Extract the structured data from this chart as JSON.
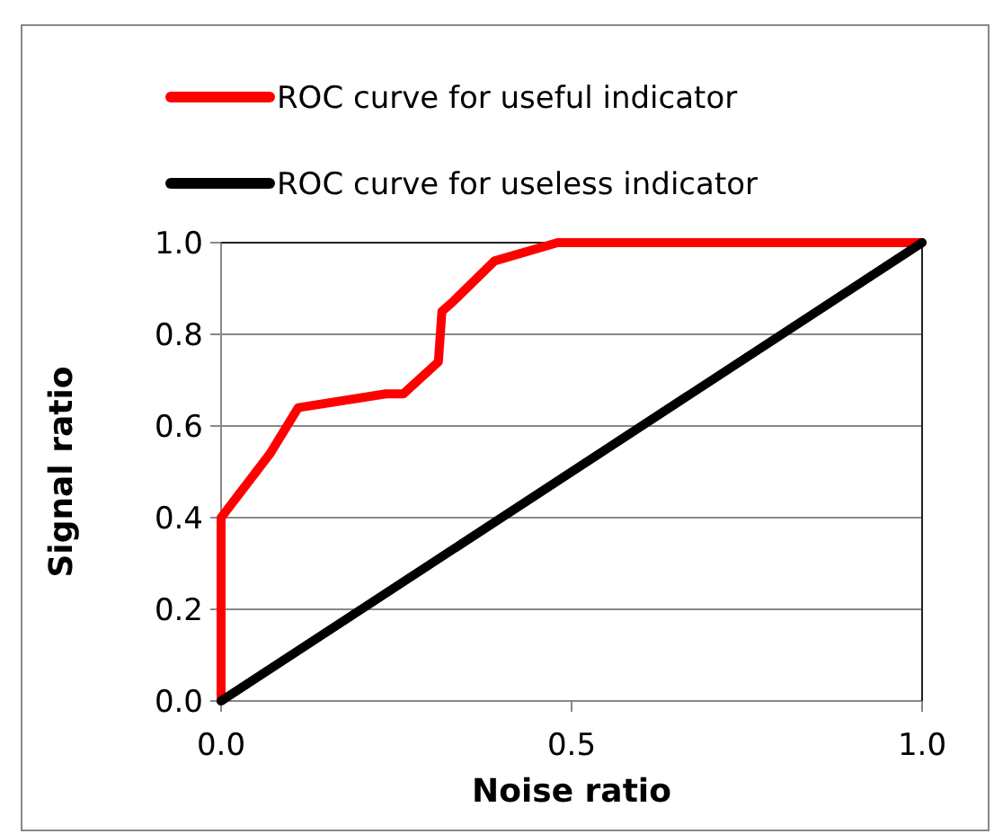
{
  "chart_data": {
    "type": "line",
    "xlabel": "Noise ratio",
    "ylabel": "Signal ratio",
    "xlim": [
      0,
      1
    ],
    "xticks": [
      {
        "value": 0,
        "label": "0.0"
      },
      {
        "value": 0.5,
        "label": "0.5"
      },
      {
        "value": 1,
        "label": "1.0"
      }
    ],
    "ylim": [
      0,
      1
    ],
    "yticks": [
      {
        "value": 0,
        "label": "0.0"
      },
      {
        "value": 0.2,
        "label": "0.2"
      },
      {
        "value": 0.4,
        "label": "0.4"
      },
      {
        "value": 0.6,
        "label": "0.6"
      },
      {
        "value": 0.8,
        "label": "0.8"
      },
      {
        "value": 1,
        "label": "1.0"
      }
    ],
    "grid": "y",
    "legend": "top",
    "marker": "none",
    "line_style": "solid",
    "series": [
      {
        "name": "ROC curve for useful indicator",
        "color": "#ff0000",
        "x": [
          0,
          0,
          0.07,
          0.11,
          0.235,
          0.26,
          0.31,
          0.315,
          0.33,
          0.39,
          0.48,
          1
        ],
        "values": [
          0,
          0.4,
          0.54,
          0.64,
          0.67,
          0.67,
          0.74,
          0.85,
          0.87,
          0.96,
          1,
          1
        ]
      },
      {
        "name": "ROC curve for useless indicator",
        "color": "#000000",
        "x": [
          0,
          1
        ],
        "values": [
          0,
          1
        ]
      }
    ]
  }
}
